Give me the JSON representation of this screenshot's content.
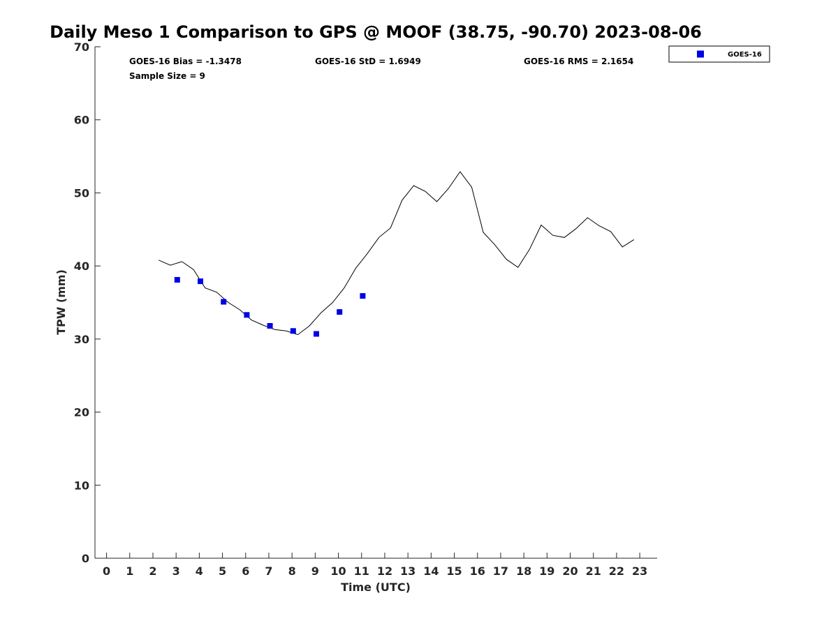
{
  "chart_data": {
    "type": "scatter",
    "title": "Daily Meso 1 Comparison to GPS @ MOOF (38.75, -90.70) 2023-08-06",
    "xlabel": "Time (UTC)",
    "ylabel": "TPW (mm)",
    "xlim": [
      -0.5,
      23.75
    ],
    "ylim": [
      0,
      70
    ],
    "x_ticks": [
      "0",
      "1",
      "2",
      "3",
      "4",
      "5",
      "6",
      "7",
      "8",
      "9",
      "10",
      "11",
      "12",
      "13",
      "14",
      "15",
      "16",
      "17",
      "18",
      "19",
      "20",
      "21",
      "22",
      "23"
    ],
    "y_ticks": [
      "0",
      "10",
      "20",
      "30",
      "40",
      "50",
      "60",
      "70"
    ],
    "grid": false,
    "legend_position": "top-right (outside plot)",
    "stats": {
      "bias": "GOES-16 Bias = -1.3478",
      "std": "GOES-16 StD = 1.6949",
      "rms": "GOES-16 RMS = 2.1654",
      "sample": "Sample Size = 9"
    },
    "series": [
      {
        "type": "line",
        "color": "#000000",
        "x": [
          2.25,
          2.75,
          3.25,
          3.75,
          4.25,
          4.75,
          5.25,
          5.75,
          6.25,
          6.75,
          7.25,
          7.75,
          8.25,
          8.75,
          9.25,
          9.75,
          10.25,
          10.75,
          11.25,
          11.75,
          12.25,
          12.75,
          13.25,
          13.75,
          14.25,
          14.75,
          15.25,
          15.75,
          16.25,
          16.75,
          17.25,
          17.75,
          18.25,
          18.75,
          19.25,
          19.75,
          20.25,
          20.75,
          21.25,
          21.75,
          22.25,
          22.75
        ],
        "y": [
          40.8,
          40.1,
          40.6,
          39.5,
          37.0,
          36.4,
          35.0,
          34.0,
          32.6,
          31.9,
          31.3,
          31.1,
          30.6,
          31.8,
          33.6,
          35.0,
          37.0,
          39.7,
          41.7,
          43.9,
          45.2,
          49.0,
          51.0,
          50.2,
          48.8,
          50.6,
          52.9,
          50.8,
          44.6,
          42.9,
          40.9,
          39.8,
          42.3,
          45.6,
          44.2,
          43.9,
          45.1,
          46.6,
          45.5,
          44.7,
          42.6,
          43.6
        ]
      },
      {
        "name": "GOES-16",
        "type": "scatter",
        "marker": "square",
        "color": "#0000e6",
        "x": [
          3.05,
          4.05,
          5.05,
          6.05,
          7.05,
          8.05,
          9.05,
          10.05,
          11.05
        ],
        "y": [
          38.1,
          37.9,
          35.1,
          33.3,
          31.8,
          31.1,
          30.7,
          33.7,
          35.9
        ]
      }
    ]
  }
}
